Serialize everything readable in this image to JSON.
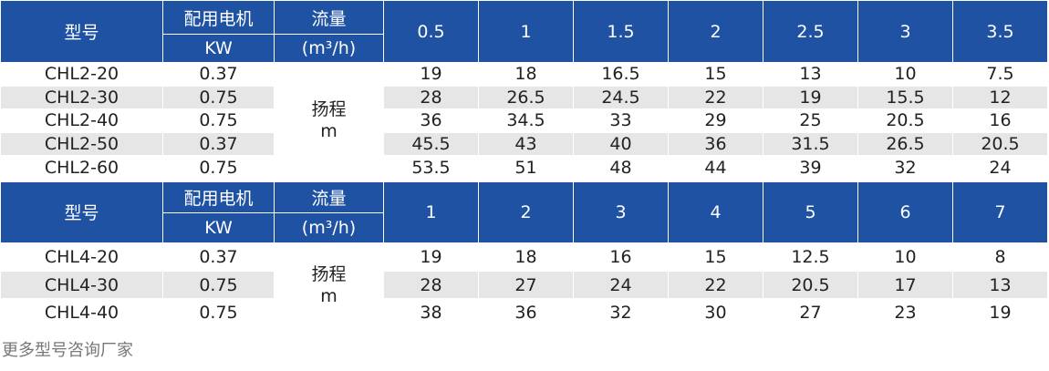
{
  "tables": [
    {
      "header": {
        "model": "型号",
        "motor": "配用电机",
        "motor_unit": "KW",
        "flow": "流量",
        "flow_unit": "(m³/h)",
        "flows": [
          0.5,
          1,
          1.5,
          2,
          2.5,
          3,
          3.5
        ]
      },
      "head_label": "扬程",
      "head_unit": "m",
      "rows": [
        {
          "model": "CHL2-20",
          "power": 0.37,
          "values": [
            19,
            18,
            16.5,
            15,
            13,
            10,
            7.5
          ]
        },
        {
          "model": "CHL2-30",
          "power": 0.75,
          "values": [
            28,
            26.5,
            24.5,
            22,
            19,
            15.5,
            12
          ]
        },
        {
          "model": "CHL2-40",
          "power": 0.75,
          "values": [
            36,
            34.5,
            33,
            29,
            25,
            20.5,
            16
          ]
        },
        {
          "model": "CHL2-50",
          "power": 0.37,
          "values": [
            45.5,
            43,
            40,
            36,
            31.5,
            26.5,
            20.5
          ]
        },
        {
          "model": "CHL2-60",
          "power": 0.75,
          "values": [
            53.5,
            51,
            48,
            44,
            39,
            32,
            24
          ]
        }
      ]
    },
    {
      "header": {
        "model": "型号",
        "motor": "配用电机",
        "motor_unit": "KW",
        "flow": "流量",
        "flow_unit": "(m³/h)",
        "flows": [
          1,
          2,
          3,
          4,
          5,
          6,
          7
        ]
      },
      "head_label": "扬程",
      "head_unit": "m",
      "rows": [
        {
          "model": "CHL4-20",
          "power": 0.37,
          "values": [
            19,
            18,
            16,
            15,
            12.5,
            10,
            8
          ]
        },
        {
          "model": "CHL4-30",
          "power": 0.75,
          "values": [
            28,
            27,
            24,
            22,
            20.5,
            17,
            13
          ]
        },
        {
          "model": "CHL4-40",
          "power": 0.75,
          "values": [
            38,
            36,
            32,
            30,
            27,
            23,
            19
          ]
        }
      ]
    }
  ],
  "footer": "更多型号咨询厂家"
}
